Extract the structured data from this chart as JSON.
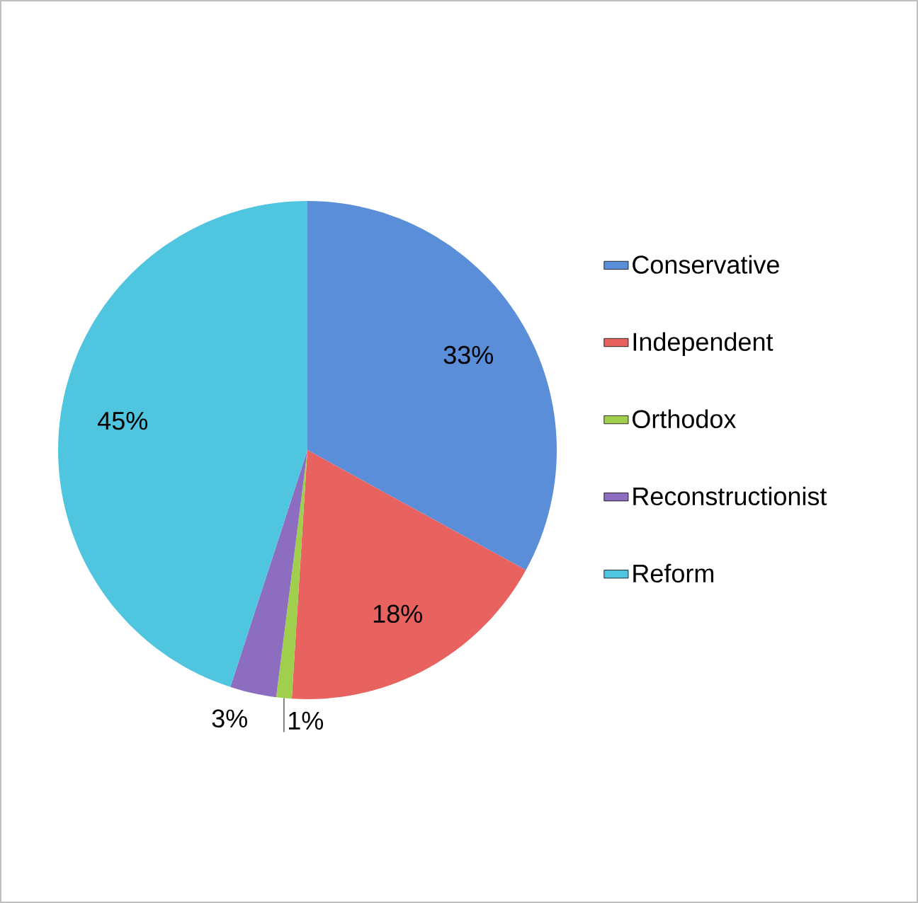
{
  "chart_data": {
    "type": "pie",
    "categories": [
      "Conservative",
      "Independent",
      "Orthodox",
      "Reconstructionist",
      "Reform"
    ],
    "values": [
      33,
      18,
      1,
      3,
      45
    ],
    "value_labels": [
      "33%",
      "18%",
      "1%",
      "3%",
      "45%"
    ],
    "colors": [
      "#5a8ed8",
      "#e8625f",
      "#9fcf4c",
      "#8d6dbf",
      "#4fc5e0"
    ],
    "legend": "right"
  }
}
